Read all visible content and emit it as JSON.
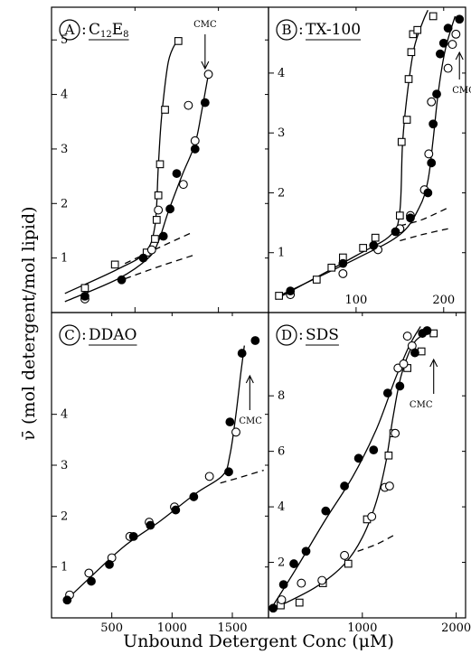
{
  "figure": {
    "ylabel": "ν̄ (mol detergent/mol lipid)",
    "xlabel": "Unbound Detergent Conc (μM)"
  },
  "chart_data": [
    {
      "id": "A",
      "type": "scatter",
      "letter": "A",
      "title_main": "C",
      "title_sub1": "12",
      "title_mid": "E",
      "title_sub2": "8",
      "cmc_label": "CMC",
      "cmc_x": 92,
      "cmc_direction": "down",
      "xlim": [
        0,
        130
      ],
      "ylim": [
        0,
        5.6
      ],
      "xticks": [
        50,
        100
      ],
      "xtick_labels": [
        "",
        ""
      ],
      "yticks": [
        1,
        2,
        3,
        4,
        5
      ],
      "ytick_labels": [
        "1",
        "2",
        "3",
        "4",
        "5"
      ],
      "series": [
        {
          "marker": "square",
          "points": [
            [
              20,
              0.45
            ],
            [
              38,
              0.88
            ],
            [
              57,
              1.1
            ],
            [
              62,
              1.35
            ],
            [
              63,
              1.7
            ],
            [
              64,
              2.15
            ],
            [
              65,
              2.72
            ],
            [
              68,
              3.72
            ],
            [
              76,
              4.98
            ]
          ]
        },
        {
          "marker": "open-circle",
          "points": [
            [
              20,
              0.25
            ],
            [
              60,
              1.15
            ],
            [
              64,
              1.88
            ],
            [
              79,
              2.35
            ],
            [
              82,
              3.8
            ],
            [
              86,
              3.15
            ],
            [
              94,
              4.37
            ]
          ]
        },
        {
          "marker": "filled-circle",
          "points": [
            [
              20,
              0.3
            ],
            [
              42,
              0.6
            ],
            [
              55,
              1.0
            ],
            [
              67,
              1.4
            ],
            [
              71,
              1.9
            ],
            [
              75,
              2.55
            ],
            [
              86,
              3.0
            ],
            [
              92,
              3.85
            ]
          ]
        }
      ],
      "curves": [
        [
          [
            8,
            0.35
          ],
          [
            40,
            0.8
          ],
          [
            56,
            1.1
          ],
          [
            62,
            1.6
          ],
          [
            64,
            2.7
          ],
          [
            66,
            3.6
          ],
          [
            70,
            4.6
          ],
          [
            75,
            4.98
          ]
        ],
        [
          [
            8,
            0.2
          ],
          [
            40,
            0.62
          ],
          [
            58,
            1.0
          ],
          [
            64,
            1.3
          ],
          [
            70,
            1.85
          ],
          [
            78,
            2.5
          ],
          [
            86,
            3.1
          ],
          [
            90,
            3.7
          ],
          [
            94,
            4.37
          ]
        ]
      ],
      "dashed": [
        [
          [
            44,
            0.9
          ],
          [
            65,
            1.2
          ],
          [
            85,
            1.48
          ]
        ],
        [
          [
            44,
            0.62
          ],
          [
            65,
            0.85
          ],
          [
            85,
            1.05
          ]
        ]
      ]
    },
    {
      "id": "B",
      "type": "scatter",
      "letter": "B",
      "title_main": "TX-100",
      "cmc_label": "CMC",
      "cmc_x": 218,
      "cmc_direction": "up",
      "xlim": [
        0,
        225
      ],
      "ylim": [
        0,
        5.1
      ],
      "xticks": [
        100,
        200
      ],
      "xtick_labels": [
        "100",
        "200"
      ],
      "yticks": [
        1,
        2,
        3,
        4
      ],
      "ytick_labels": [
        "1",
        "2",
        "3",
        "4"
      ],
      "series": [
        {
          "marker": "square",
          "points": [
            [
              12,
              0.28
            ],
            [
              55,
              0.55
            ],
            [
              72,
              0.75
            ],
            [
              85,
              0.92
            ],
            [
              108,
              1.08
            ],
            [
              122,
              1.25
            ],
            [
              150,
              1.62
            ],
            [
              152,
              2.85
            ],
            [
              158,
              3.22
            ],
            [
              160,
              3.9
            ],
            [
              163,
              4.35
            ],
            [
              165,
              4.65
            ],
            [
              170,
              4.72
            ],
            [
              188,
              4.95
            ]
          ]
        },
        {
          "marker": "open-circle",
          "points": [
            [
              25,
              0.3
            ],
            [
              85,
              0.65
            ],
            [
              125,
              1.05
            ],
            [
              150,
              1.4
            ],
            [
              162,
              1.62
            ],
            [
              178,
              2.05
            ],
            [
              183,
              2.65
            ],
            [
              186,
              3.52
            ],
            [
              205,
              4.08
            ],
            [
              210,
              4.48
            ],
            [
              214,
              4.65
            ]
          ]
        },
        {
          "marker": "filled-circle",
          "points": [
            [
              25,
              0.36
            ],
            [
              85,
              0.82
            ],
            [
              120,
              1.12
            ],
            [
              145,
              1.35
            ],
            [
              162,
              1.58
            ],
            [
              182,
              2.0
            ],
            [
              186,
              2.5
            ],
            [
              188,
              3.15
            ],
            [
              192,
              3.65
            ],
            [
              196,
              4.32
            ],
            [
              200,
              4.5
            ],
            [
              205,
              4.75
            ],
            [
              218,
              4.9
            ]
          ]
        }
      ],
      "curves": [
        [
          [
            8,
            0.22
          ],
          [
            100,
            0.95
          ],
          [
            140,
            1.3
          ],
          [
            150,
            1.7
          ],
          [
            153,
            2.8
          ],
          [
            158,
            3.6
          ],
          [
            166,
            4.4
          ],
          [
            176,
            4.85
          ],
          [
            182,
            5.05
          ]
        ],
        [
          [
            8,
            0.25
          ],
          [
            100,
            0.9
          ],
          [
            150,
            1.3
          ],
          [
            172,
            1.75
          ],
          [
            182,
            2.2
          ],
          [
            188,
            2.9
          ],
          [
            194,
            3.7
          ],
          [
            202,
            4.4
          ],
          [
            213,
            4.95
          ]
        ]
      ],
      "dashed": [
        [
          [
            150,
            1.45
          ],
          [
            175,
            1.55
          ],
          [
            205,
            1.75
          ]
        ],
        [
          [
            150,
            1.2
          ],
          [
            175,
            1.3
          ],
          [
            205,
            1.4
          ]
        ]
      ]
    },
    {
      "id": "C",
      "type": "scatter",
      "letter": "C",
      "title_main": "DDAO",
      "cmc_label": "CMC",
      "cmc_x": 1645,
      "cmc_direction": "up",
      "xlim": [
        0,
        1800
      ],
      "ylim": [
        0,
        6.0
      ],
      "xticks": [
        500,
        1000,
        1500
      ],
      "xtick_labels": [
        "500",
        "1000",
        "1500"
      ],
      "yticks": [
        1,
        2,
        3,
        4
      ],
      "ytick_labels": [
        "1",
        "2",
        "3",
        "4"
      ],
      "series": [
        {
          "marker": "open-circle",
          "points": [
            [
              150,
              0.45
            ],
            [
              310,
              0.88
            ],
            [
              500,
              1.18
            ],
            [
              650,
              1.6
            ],
            [
              810,
              1.88
            ],
            [
              1020,
              2.18
            ],
            [
              1310,
              2.78
            ],
            [
              1530,
              3.65
            ]
          ]
        },
        {
          "marker": "filled-circle",
          "points": [
            [
              130,
              0.35
            ],
            [
              330,
              0.72
            ],
            [
              480,
              1.05
            ],
            [
              680,
              1.6
            ],
            [
              820,
              1.82
            ],
            [
              1030,
              2.12
            ],
            [
              1180,
              2.38
            ],
            [
              1470,
              2.87
            ],
            [
              1480,
              3.85
            ],
            [
              1580,
              5.2
            ],
            [
              1690,
              5.45
            ]
          ]
        }
      ],
      "curves": [
        [
          [
            100,
            0.3
          ],
          [
            300,
            0.75
          ],
          [
            600,
            1.4
          ],
          [
            900,
            1.9
          ],
          [
            1200,
            2.45
          ],
          [
            1420,
            2.8
          ],
          [
            1480,
            3.2
          ],
          [
            1530,
            4.0
          ],
          [
            1570,
            4.8
          ],
          [
            1600,
            5.35
          ]
        ]
      ],
      "dashed": [
        [
          [
            1400,
            2.65
          ],
          [
            1550,
            2.75
          ],
          [
            1760,
            2.9
          ]
        ]
      ]
    },
    {
      "id": "D",
      "type": "scatter",
      "letter": "D",
      "title_main": "SDS",
      "cmc_label": "CMC",
      "cmc_x": 1760,
      "cmc_direction": "up",
      "xlim": [
        0,
        2100
      ],
      "ylim": [
        0,
        11.0
      ],
      "xticks": [
        1000,
        2000
      ],
      "xtick_labels": [
        "1000",
        "2000"
      ],
      "yticks": [
        2,
        4,
        6,
        8
      ],
      "ytick_labels": [
        "2",
        "4",
        "6",
        "8"
      ],
      "series": [
        {
          "marker": "square",
          "points": [
            [
              130,
              0.45
            ],
            [
              330,
              0.55
            ],
            [
              580,
              1.25
            ],
            [
              850,
              1.95
            ],
            [
              1050,
              3.55
            ],
            [
              1280,
              5.85
            ],
            [
              1330,
              6.65
            ],
            [
              1480,
              9.0
            ],
            [
              1630,
              9.6
            ],
            [
              1760,
              10.25
            ]
          ]
        },
        {
          "marker": "open-circle",
          "points": [
            [
              140,
              0.65
            ],
            [
              350,
              1.25
            ],
            [
              570,
              1.35
            ],
            [
              810,
              2.25
            ],
            [
              1100,
              3.65
            ],
            [
              1240,
              4.7
            ],
            [
              1290,
              4.75
            ],
            [
              1350,
              6.65
            ],
            [
              1380,
              9.0
            ],
            [
              1440,
              9.15
            ],
            [
              1480,
              10.15
            ],
            [
              1530,
              9.8
            ]
          ]
        },
        {
          "marker": "filled-circle",
          "points": [
            [
              50,
              0.35
            ],
            [
              160,
              1.2
            ],
            [
              270,
              1.95
            ],
            [
              400,
              2.4
            ],
            [
              610,
              3.85
            ],
            [
              810,
              4.75
            ],
            [
              960,
              5.75
            ],
            [
              1120,
              6.05
            ],
            [
              1270,
              8.1
            ],
            [
              1400,
              8.35
            ],
            [
              1560,
              9.55
            ],
            [
              1640,
              10.25
            ],
            [
              1690,
              10.35
            ]
          ]
        }
      ],
      "curves": [
        [
          [
            50,
            0.45
          ],
          [
            300,
            1.8
          ],
          [
            600,
            3.5
          ],
          [
            900,
            5.1
          ],
          [
            1150,
            6.8
          ],
          [
            1350,
            8.6
          ],
          [
            1500,
            9.8
          ],
          [
            1620,
            10.5
          ]
        ],
        [
          [
            100,
            0.4
          ],
          [
            500,
            1.1
          ],
          [
            800,
            1.9
          ],
          [
            1000,
            2.9
          ],
          [
            1150,
            4.2
          ],
          [
            1250,
            5.6
          ],
          [
            1330,
            7.3
          ],
          [
            1420,
            8.8
          ],
          [
            1560,
            9.95
          ],
          [
            1760,
            10.35
          ]
        ]
      ],
      "dashed": [
        [
          [
            950,
            2.4
          ],
          [
            1150,
            2.65
          ],
          [
            1350,
            3.0
          ]
        ]
      ]
    }
  ]
}
